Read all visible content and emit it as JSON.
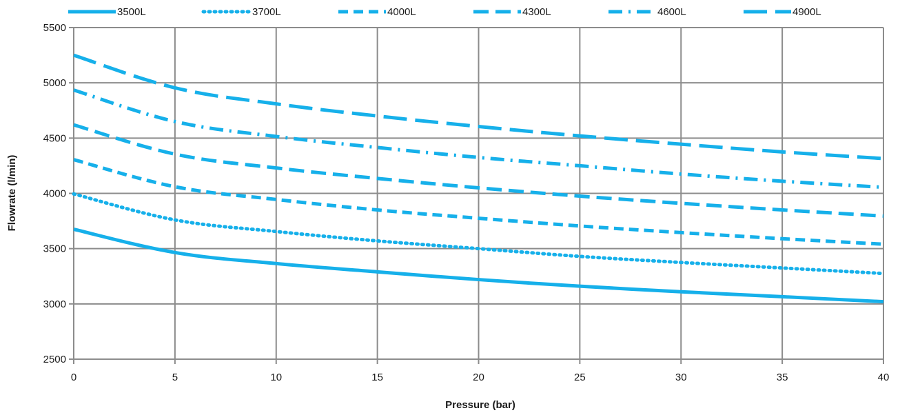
{
  "chart_data": {
    "type": "line",
    "title": "",
    "xlabel": "Pressure (bar)",
    "ylabel": "Flowrate (l/min)",
    "xlim": [
      0,
      40
    ],
    "ylim": [
      2500,
      5500
    ],
    "xticks": [
      0,
      5,
      10,
      15,
      20,
      25,
      30,
      35,
      40
    ],
    "yticks": [
      2500,
      3000,
      3500,
      4000,
      4500,
      5000,
      5500
    ],
    "grid": true,
    "legend_position": "top",
    "line_color": "#16b0ea",
    "x": [
      0,
      5,
      10,
      15,
      20,
      25,
      30,
      35,
      40
    ],
    "series": [
      {
        "name": "3500L",
        "dash": "solid",
        "values": [
          3675,
          3465,
          3365,
          3290,
          3220,
          3160,
          3110,
          3065,
          3020
        ]
      },
      {
        "name": "3700L",
        "dash": "dotted",
        "values": [
          3995,
          3760,
          3655,
          3570,
          3500,
          3430,
          3375,
          3325,
          3275
        ]
      },
      {
        "name": "4000L",
        "dash": "dashed",
        "values": [
          4305,
          4060,
          3945,
          3850,
          3775,
          3705,
          3645,
          3590,
          3540
        ]
      },
      {
        "name": "4300L",
        "dash": "long-dashed",
        "values": [
          4620,
          4355,
          4230,
          4135,
          4050,
          3975,
          3910,
          3850,
          3795
        ]
      },
      {
        "name": "4600L",
        "dash": "dash-dot",
        "values": [
          4935,
          4650,
          4515,
          4415,
          4325,
          4250,
          4175,
          4110,
          4055
        ]
      },
      {
        "name": "4900L",
        "dash": "long-dash",
        "values": [
          5250,
          4955,
          4810,
          4700,
          4605,
          4520,
          4445,
          4375,
          4315
        ]
      }
    ]
  }
}
